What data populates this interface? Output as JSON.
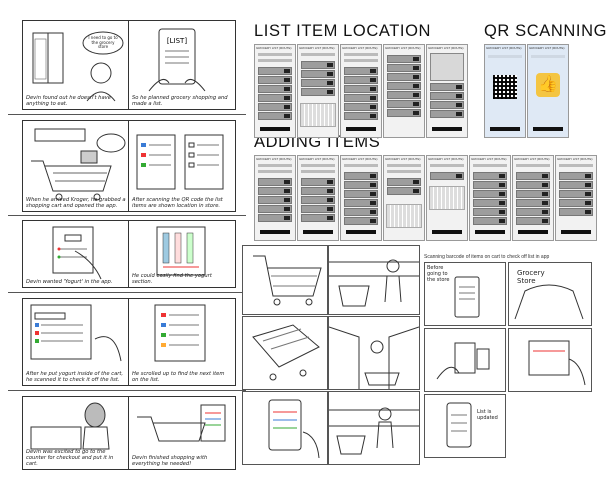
{
  "storyboard": {
    "captions": [
      "Devin found out he doesn't have anything to eat.",
      "So he planned grocery shopping and made a list.",
      "When he arrived Kroger, he grabbed a shopping cart and opened the app.",
      "After scanning the QR code the list items are shown location in store.",
      "Devin wanted 'Yogurt' in the app.",
      "He could easily find the yogurt section.",
      "After he put yogurt inside of the cart, he scanned it to check it off the list.",
      "He scrolled up to find the next item on the list.",
      "Devin was excited to go to the counter for checkout and put it in cart.",
      "Devin finished shopping with everything he needed!"
    ],
    "bubble_text": "I need to go to the grocery store"
  },
  "sections": {
    "list_item_location": "LIST ITEM LOCATION",
    "qr_scanning": "QR SCANNING",
    "adding_items": "ADDING ITEMS"
  },
  "mock_header": "GROCERY LIST (ROUTE)",
  "scan": {
    "heading": "Scanning barcode of items on cart to check off list in app",
    "grocery_store": "Grocery Store",
    "note_1": "Before going to the store",
    "note_2": "List is updated"
  }
}
